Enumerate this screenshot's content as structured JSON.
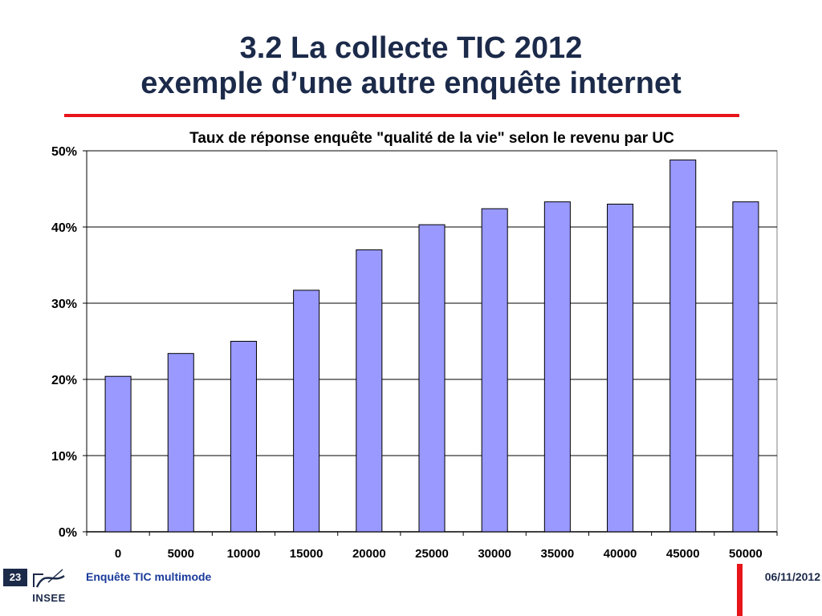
{
  "slide": {
    "title_line1": "3.2 La collecte TIC 2012",
    "title_line2": "exemple d’une autre enquête internet",
    "page_number": "23",
    "logo_text": "INSEE",
    "footer_caption": "Enquête TIC multimode",
    "footer_date": "06/11/2012"
  },
  "colors": {
    "bar_fill": "#9999ff",
    "accent_red": "#e8141b",
    "title_navy": "#1c2a4a",
    "caption_blue": "#1a3a9a"
  },
  "chart_data": {
    "type": "bar",
    "title": "Taux de réponse enquête \"qualité de la vie\" selon le revenu par UC",
    "xlabel": "",
    "ylabel": "",
    "categories": [
      "0",
      "5000",
      "10000",
      "15000",
      "20000",
      "25000",
      "30000",
      "35000",
      "40000",
      "45000",
      "50000"
    ],
    "values": [
      0.204,
      0.234,
      0.25,
      0.317,
      0.37,
      0.403,
      0.424,
      0.433,
      0.43,
      0.488,
      0.433
    ],
    "ylim": [
      0,
      0.5
    ],
    "yticks": [
      0,
      0.1,
      0.2,
      0.3,
      0.4,
      0.5
    ],
    "ytick_labels": [
      "0%",
      "10%",
      "20%",
      "30%",
      "40%",
      "50%"
    ],
    "grid": true,
    "legend": "none"
  }
}
